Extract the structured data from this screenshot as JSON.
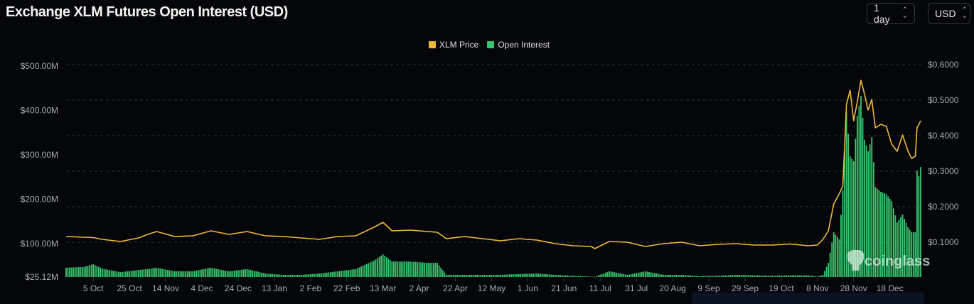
{
  "header": {
    "title": "Exchange XLM Futures Open Interest (USD)",
    "interval_select": "1 day",
    "currency_select": "USD"
  },
  "watermark": "coinglass",
  "chart_data": {
    "type": "bar+line",
    "title": "Exchange XLM Futures Open Interest (USD)",
    "legend": {
      "placement": "top-center",
      "items": [
        {
          "name": "XLM Price",
          "color": "#f0b93a"
        },
        {
          "name": "Open Interest",
          "color": "#35c86f"
        }
      ]
    },
    "grid": "horizontal dashed",
    "left_axis": {
      "unit": "USD",
      "range": [
        25.12,
        500
      ],
      "ticks": [
        {
          "value": 500,
          "label": "$500.00M"
        },
        {
          "value": 400,
          "label": "$400.00M"
        },
        {
          "value": 300,
          "label": "$300.00M"
        },
        {
          "value": 200,
          "label": "$200.00M"
        },
        {
          "value": 100,
          "label": "$100.00M"
        },
        {
          "value": 25.12,
          "label": "$25.12M"
        }
      ]
    },
    "right_axis": {
      "unit": "USD",
      "range": [
        0,
        0.6
      ],
      "ticks": [
        {
          "value": 0.6,
          "label": "$0.6000"
        },
        {
          "value": 0.5,
          "label": "$0.5000"
        },
        {
          "value": 0.4,
          "label": "$0.4000"
        },
        {
          "value": 0.3,
          "label": "$0.3000"
        },
        {
          "value": 0.2,
          "label": "$0.2000"
        },
        {
          "value": 0.1,
          "label": "$0.1000"
        }
      ]
    },
    "x_ticks": [
      {
        "date": "2023-10-05",
        "label": "5 Oct"
      },
      {
        "date": "2023-10-25",
        "label": "25 Oct"
      },
      {
        "date": "2023-11-14",
        "label": "14 Nov"
      },
      {
        "date": "2023-12-04",
        "label": "4 Dec"
      },
      {
        "date": "2023-12-24",
        "label": "24 Dec"
      },
      {
        "date": "2024-01-13",
        "label": "13 Jan"
      },
      {
        "date": "2024-02-02",
        "label": "2 Feb"
      },
      {
        "date": "2024-02-22",
        "label": "22 Feb"
      },
      {
        "date": "2024-03-13",
        "label": "13 Mar"
      },
      {
        "date": "2024-04-02",
        "label": "2 Apr"
      },
      {
        "date": "2024-04-22",
        "label": "22 Apr"
      },
      {
        "date": "2024-05-12",
        "label": "12 May"
      },
      {
        "date": "2024-06-01",
        "label": "1 Jun"
      },
      {
        "date": "2024-06-21",
        "label": "21 Jun"
      },
      {
        "date": "2024-07-11",
        "label": "11 Jul"
      },
      {
        "date": "2024-07-31",
        "label": "31 Jul"
      },
      {
        "date": "2024-08-20",
        "label": "20 Aug"
      },
      {
        "date": "2024-09-09",
        "label": "9 Sep"
      },
      {
        "date": "2024-09-29",
        "label": "29 Sep"
      },
      {
        "date": "2024-10-19",
        "label": "19 Oct"
      },
      {
        "date": "2024-11-08",
        "label": "8 Nov"
      },
      {
        "date": "2024-11-28",
        "label": "28 Nov"
      },
      {
        "date": "2024-12-18",
        "label": "18 Dec"
      }
    ],
    "series_fields": [
      "date",
      "xlm_price_usd",
      "open_interest_musd"
    ],
    "points": [
      [
        "2023-09-20",
        0.116,
        46
      ],
      [
        "2023-09-30",
        0.114,
        48
      ],
      [
        "2023-10-05",
        0.113,
        54
      ],
      [
        "2023-10-10",
        0.108,
        44
      ],
      [
        "2023-10-20",
        0.102,
        36
      ],
      [
        "2023-10-30",
        0.112,
        41
      ],
      [
        "2023-11-04",
        0.122,
        43
      ],
      [
        "2023-11-09",
        0.13,
        46
      ],
      [
        "2023-11-19",
        0.116,
        38
      ],
      [
        "2023-11-29",
        0.118,
        38
      ],
      [
        "2023-12-09",
        0.132,
        46
      ],
      [
        "2023-12-19",
        0.122,
        38
      ],
      [
        "2023-12-29",
        0.13,
        43
      ],
      [
        "2024-01-08",
        0.118,
        33
      ],
      [
        "2024-01-18",
        0.116,
        30
      ],
      [
        "2024-01-28",
        0.112,
        30
      ],
      [
        "2024-02-07",
        0.108,
        33
      ],
      [
        "2024-02-17",
        0.116,
        38
      ],
      [
        "2024-02-27",
        0.118,
        43
      ],
      [
        "2024-03-08",
        0.142,
        62
      ],
      [
        "2024-03-13",
        0.156,
        76
      ],
      [
        "2024-03-18",
        0.132,
        60
      ],
      [
        "2024-03-28",
        0.134,
        60
      ],
      [
        "2024-04-07",
        0.13,
        57
      ],
      [
        "2024-04-12",
        0.128,
        57
      ],
      [
        "2024-04-17",
        0.11,
        30
      ],
      [
        "2024-04-27",
        0.116,
        30
      ],
      [
        "2024-05-07",
        0.11,
        30
      ],
      [
        "2024-05-17",
        0.104,
        30
      ],
      [
        "2024-05-27",
        0.11,
        32
      ],
      [
        "2024-06-06",
        0.106,
        33
      ],
      [
        "2024-06-16",
        0.096,
        30
      ],
      [
        "2024-06-26",
        0.09,
        28
      ],
      [
        "2024-07-06",
        0.088,
        26
      ],
      [
        "2024-07-08",
        0.082,
        25.5
      ],
      [
        "2024-07-16",
        0.102,
        38
      ],
      [
        "2024-07-26",
        0.1,
        30
      ],
      [
        "2024-08-05",
        0.088,
        38
      ],
      [
        "2024-08-15",
        0.096,
        30
      ],
      [
        "2024-08-25",
        0.1,
        30
      ],
      [
        "2024-09-04",
        0.09,
        27
      ],
      [
        "2024-09-14",
        0.094,
        28
      ],
      [
        "2024-09-24",
        0.096,
        30
      ],
      [
        "2024-10-04",
        0.092,
        29
      ],
      [
        "2024-10-14",
        0.092,
        28
      ],
      [
        "2024-10-24",
        0.095,
        29
      ],
      [
        "2024-11-03",
        0.09,
        29
      ],
      [
        "2024-11-08",
        0.092,
        26
      ],
      [
        "2024-11-11",
        0.108,
        30
      ],
      [
        "2024-11-14",
        0.132,
        57
      ],
      [
        "2024-11-17",
        0.208,
        126
      ],
      [
        "2024-11-20",
        0.236,
        110
      ],
      [
        "2024-11-22",
        0.258,
        220
      ],
      [
        "2024-11-24",
        0.488,
        398
      ],
      [
        "2024-11-26",
        0.528,
        297
      ],
      [
        "2024-11-28",
        0.442,
        286
      ],
      [
        "2024-11-30",
        0.496,
        388
      ],
      [
        "2024-12-02",
        0.556,
        433
      ],
      [
        "2024-12-04",
        0.516,
        334
      ],
      [
        "2024-12-06",
        0.472,
        308
      ],
      [
        "2024-12-08",
        0.502,
        340
      ],
      [
        "2024-12-10",
        0.422,
        228
      ],
      [
        "2024-12-13",
        0.432,
        217
      ],
      [
        "2024-12-16",
        0.426,
        212
      ],
      [
        "2024-12-19",
        0.376,
        196
      ],
      [
        "2024-12-22",
        0.356,
        148
      ],
      [
        "2024-12-25",
        0.402,
        166
      ],
      [
        "2024-12-28",
        0.356,
        137
      ],
      [
        "2024-12-30",
        0.336,
        126
      ],
      [
        "2025-01-01",
        0.342,
        126
      ],
      [
        "2025-01-02",
        0.422,
        265
      ],
      [
        "2025-01-03",
        0.432,
        252
      ],
      [
        "2025-01-04",
        0.442,
        273
      ]
    ]
  }
}
